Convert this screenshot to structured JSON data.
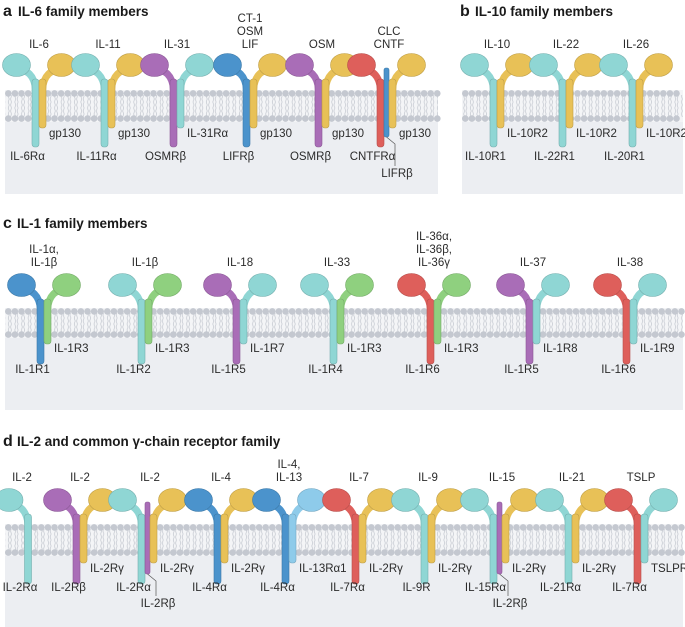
{
  "panels": [
    {
      "letter": "a",
      "title": "IL-6 family members",
      "complexes": [
        {
          "ligand": [
            "IL-6"
          ],
          "chains": [
            {
              "role": "left",
              "name": "IL-6Rα",
              "color": "#8fd6d4"
            },
            {
              "role": "right",
              "name": "gp130",
              "color": "#e8c157"
            }
          ]
        },
        {
          "ligand": [
            "IL-11"
          ],
          "chains": [
            {
              "role": "left",
              "name": "IL-11Rα",
              "color": "#8fd6d4"
            },
            {
              "role": "right",
              "name": "gp130",
              "color": "#e8c157"
            }
          ]
        },
        {
          "ligand": [
            "IL-31"
          ],
          "chains": [
            {
              "role": "left",
              "name": "OSMRβ",
              "color": "#a96db7"
            },
            {
              "role": "right",
              "name": "IL-31Rα",
              "color": "#8fd6d4"
            }
          ]
        },
        {
          "ligand": [
            "CT-1",
            "OSM",
            "LIF"
          ],
          "chains": [
            {
              "role": "left",
              "name": "LIFRβ",
              "color": "#4b93cc"
            },
            {
              "role": "right",
              "name": "gp130",
              "color": "#e8c157"
            }
          ]
        },
        {
          "ligand": [
            "OSM"
          ],
          "chains": [
            {
              "role": "left",
              "name": "OSMRβ",
              "color": "#a96db7"
            },
            {
              "role": "right",
              "name": "gp130",
              "color": "#e8c157"
            }
          ]
        },
        {
          "ligand": [
            "CLC",
            "CNTF"
          ],
          "chains": [
            {
              "role": "left",
              "name": "CNTFRα",
              "color": "#de5f5b"
            },
            {
              "role": "mid",
              "name": "LIFRβ",
              "color": "#4b93cc"
            },
            {
              "role": "right",
              "name": "gp130",
              "color": "#e8c157"
            }
          ]
        }
      ]
    },
    {
      "letter": "b",
      "title": "IL-10 family members",
      "complexes": [
        {
          "ligand": [
            "IL-10"
          ],
          "chains": [
            {
              "role": "left",
              "name": "IL-10R1",
              "color": "#8fd6d4"
            },
            {
              "role": "right",
              "name": "IL-10R2",
              "color": "#e8c157"
            }
          ]
        },
        {
          "ligand": [
            "IL-22"
          ],
          "chains": [
            {
              "role": "left",
              "name": "IL-22R1",
              "color": "#8fd6d4"
            },
            {
              "role": "right",
              "name": "IL-10R2",
              "color": "#e8c157"
            }
          ]
        },
        {
          "ligand": [
            "IL-26"
          ],
          "chains": [
            {
              "role": "left",
              "name": "IL-20R1",
              "color": "#8fd6d4"
            },
            {
              "role": "right",
              "name": "IL-10R2",
              "color": "#e8c157"
            }
          ]
        }
      ]
    },
    {
      "letter": "c",
      "title": "IL-1 family members",
      "complexes": [
        {
          "ligand": [
            "IL-1α,",
            "IL-1β"
          ],
          "chains": [
            {
              "role": "left",
              "name": "IL-1R1",
              "color": "#4b93cc"
            },
            {
              "role": "right",
              "name": "IL-1R3",
              "color": "#8fd07f"
            }
          ]
        },
        {
          "ligand": [
            "IL-1β"
          ],
          "chains": [
            {
              "role": "left",
              "name": "IL-1R2",
              "color": "#8fd6d4"
            },
            {
              "role": "right",
              "name": "IL-1R3",
              "color": "#8fd07f"
            }
          ]
        },
        {
          "ligand": [
            "IL-18"
          ],
          "chains": [
            {
              "role": "left",
              "name": "IL-1R5",
              "color": "#a96db7"
            },
            {
              "role": "right",
              "name": "IL-1R7",
              "color": "#8fd6d4"
            }
          ]
        },
        {
          "ligand": [
            "IL-33"
          ],
          "chains": [
            {
              "role": "left",
              "name": "IL-1R4",
              "color": "#8fd6d4"
            },
            {
              "role": "right",
              "name": "IL-1R3",
              "color": "#8fd07f"
            }
          ]
        },
        {
          "ligand": [
            "IL-36α,",
            "IL-36β,",
            "IL-36γ"
          ],
          "chains": [
            {
              "role": "left",
              "name": "IL-1R6",
              "color": "#de5f5b"
            },
            {
              "role": "right",
              "name": "IL-1R3",
              "color": "#8fd07f"
            }
          ]
        },
        {
          "ligand": [
            "IL-37"
          ],
          "chains": [
            {
              "role": "left",
              "name": "IL-1R5",
              "color": "#a96db7"
            },
            {
              "role": "right",
              "name": "IL-1R8",
              "color": "#8fd6d4"
            }
          ]
        },
        {
          "ligand": [
            "IL-38"
          ],
          "chains": [
            {
              "role": "left",
              "name": "IL-1R6",
              "color": "#de5f5b"
            },
            {
              "role": "right",
              "name": "IL-1R9",
              "color": "#8fd6d4"
            }
          ]
        }
      ]
    },
    {
      "letter": "d",
      "title": "IL-2 and common γ-chain receptor family",
      "complexes": [
        {
          "ligand": [
            "IL-2"
          ],
          "chains": [
            {
              "role": "left",
              "name": "IL-2Rα",
              "color": "#8fd6d4"
            }
          ]
        },
        {
          "ligand": [
            "IL-2"
          ],
          "chains": [
            {
              "role": "left",
              "name": "IL-2Rβ",
              "color": "#a96db7"
            },
            {
              "role": "right",
              "name": "IL-2Rγ",
              "color": "#e8c157"
            }
          ]
        },
        {
          "ligand": [
            "IL-2"
          ],
          "chains": [
            {
              "role": "left",
              "name": "IL-2Rα",
              "color": "#8fd6d4"
            },
            {
              "role": "mid",
              "name": "IL-2Rβ",
              "color": "#a96db7"
            },
            {
              "role": "right",
              "name": "IL-2Rγ",
              "color": "#e8c157"
            }
          ]
        },
        {
          "ligand": [
            "IL-4"
          ],
          "chains": [
            {
              "role": "left",
              "name": "IL-4Rα",
              "color": "#4b93cc"
            },
            {
              "role": "right",
              "name": "IL-2Rγ",
              "color": "#e8c157"
            }
          ]
        },
        {
          "ligand": [
            "IL-4,",
            "IL-13"
          ],
          "chains": [
            {
              "role": "left",
              "name": "IL-4Rα",
              "color": "#4b93cc"
            },
            {
              "role": "right",
              "name": "IL-13Rα1",
              "color": "#8ecbea"
            }
          ]
        },
        {
          "ligand": [
            "IL-7"
          ],
          "chains": [
            {
              "role": "left",
              "name": "IL-7Rα",
              "color": "#de5f5b"
            },
            {
              "role": "right",
              "name": "IL-2Rγ",
              "color": "#e8c157"
            }
          ]
        },
        {
          "ligand": [
            "IL-9"
          ],
          "chains": [
            {
              "role": "left",
              "name": "IL-9R",
              "color": "#8fd6d4"
            },
            {
              "role": "right",
              "name": "IL-2Rγ",
              "color": "#e8c157"
            }
          ]
        },
        {
          "ligand": [
            "IL-15"
          ],
          "chains": [
            {
              "role": "left",
              "name": "IL-15Rα",
              "color": "#8fd6d4"
            },
            {
              "role": "mid",
              "name": "IL-2Rβ",
              "color": "#a96db7"
            },
            {
              "role": "right",
              "name": "IL-2Rγ",
              "color": "#e8c157"
            }
          ]
        },
        {
          "ligand": [
            "IL-21"
          ],
          "chains": [
            {
              "role": "left",
              "name": "IL-21Rα",
              "color": "#8fd6d4"
            },
            {
              "role": "right",
              "name": "IL-2Rγ",
              "color": "#e8c157"
            }
          ]
        },
        {
          "ligand": [
            "TSLP"
          ],
          "chains": [
            {
              "role": "left",
              "name": "IL-7Rα",
              "color": "#de5f5b"
            },
            {
              "role": "right",
              "name": "TSLPR",
              "color": "#8fd6d4"
            }
          ]
        }
      ]
    }
  ]
}
